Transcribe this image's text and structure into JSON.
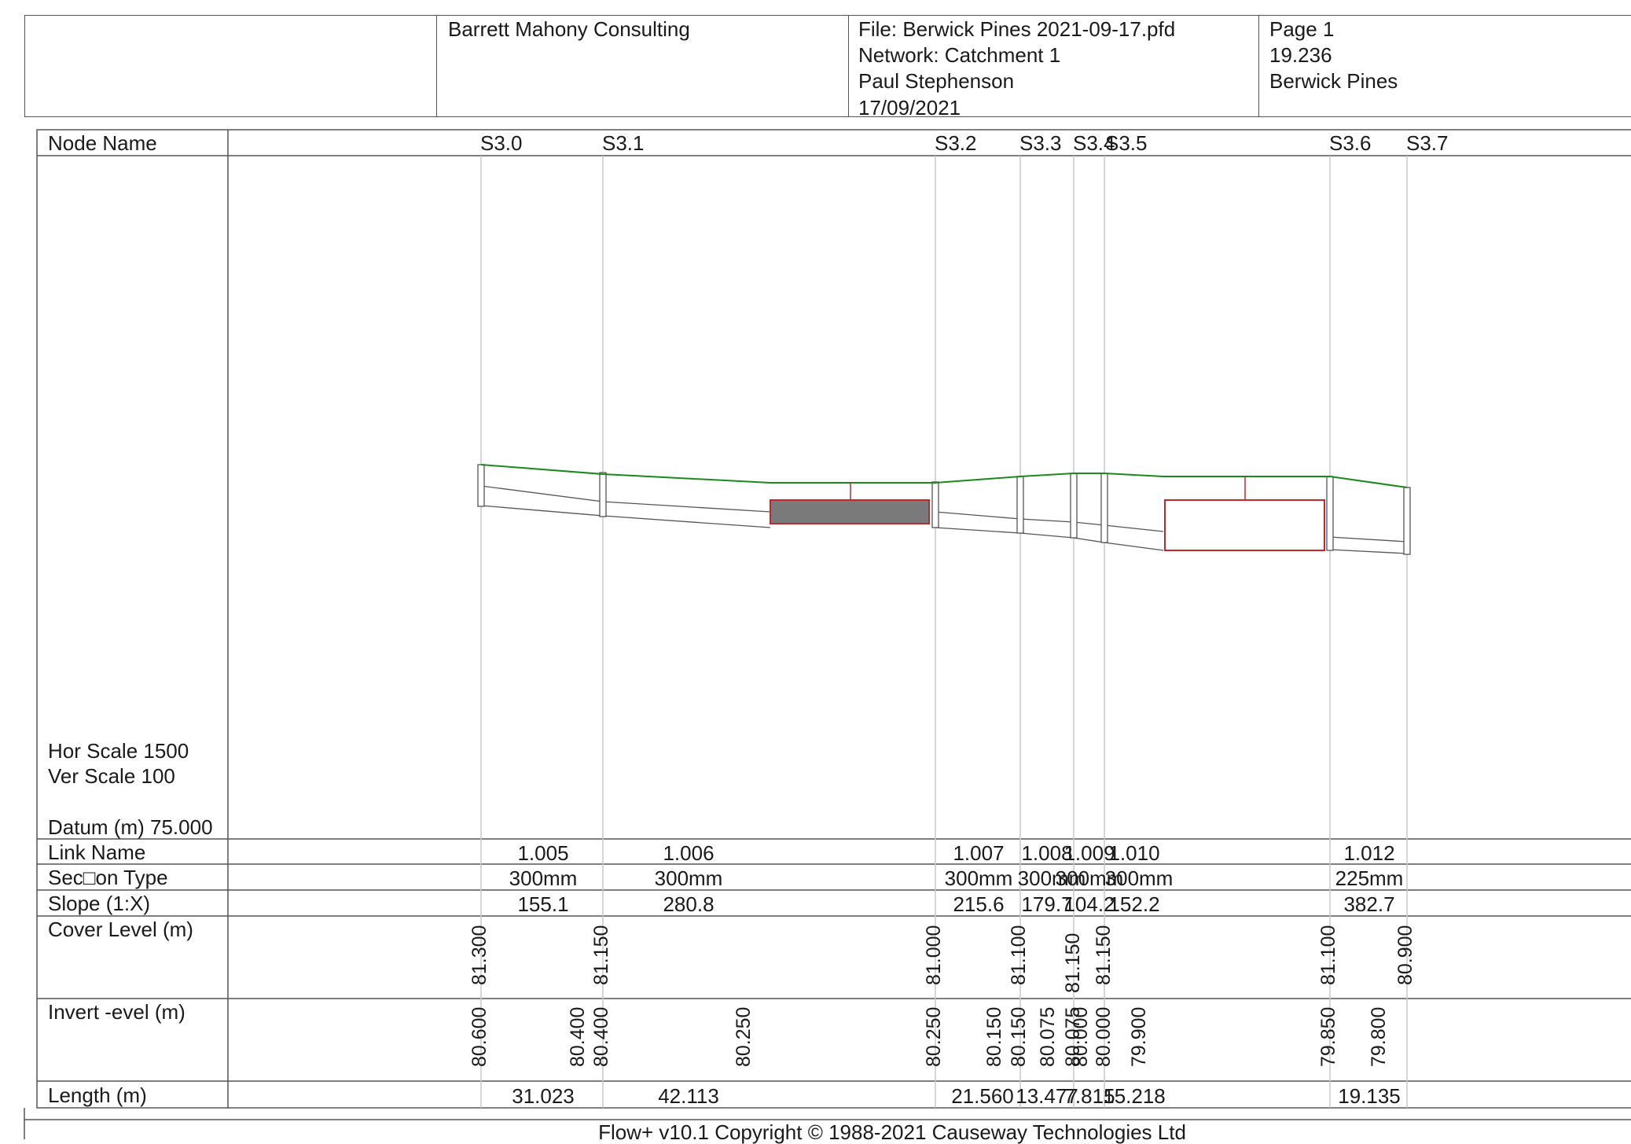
{
  "header": {
    "company": "Barrett Mahony Consulting",
    "file": "File: Berwick Pines 2021-09-17.pfd",
    "network": "Network: Catchment 1",
    "author": "Paul Stephenson",
    "date": "17/09/2021",
    "page": "Page 1",
    "job_number": "19.236",
    "project": "Berwick Pines"
  },
  "row_labels": {
    "node_name": "Node Name",
    "hor_scale": "Hor Scale 1500",
    "ver_scale": "Ver Scale 100",
    "datum": "Datum (m) 75.000",
    "link_name": "Link Name",
    "section_type": "Sec□on Type",
    "slope": "Slope (1:X)",
    "cover_level": "Cover Level (m)",
    "invert_level": "Invert ‐evel (m)",
    "length": "Length (m)"
  },
  "nodes": [
    "S3.0",
    "S3.1",
    "S3.2",
    "S3.3",
    "S3.4",
    "S3.5",
    "S3.6",
    "S3.7"
  ],
  "links": [
    {
      "name": "1.005",
      "section": "300mm",
      "slope": "155.1",
      "length": "31.023"
    },
    {
      "name": "1.006",
      "section": "300mm",
      "slope": "280.8",
      "length": "42.113"
    },
    {
      "name": "1.007",
      "section": "300mm",
      "slope": "215.6",
      "length": "21.560"
    },
    {
      "name": "1.008",
      "section": "300mm",
      "slope": "179.7",
      "length": "13.477"
    },
    {
      "name": "1.009",
      "section": "300mm",
      "slope": "104.2",
      "length": "7.815"
    },
    {
      "name": "1.010",
      "section": "300mm",
      "slope": "152.2",
      "length": "15.218"
    },
    {
      "name": "1.012",
      "section": "225mm",
      "slope": "382.7",
      "length": "19.135"
    }
  ],
  "cover_levels": [
    "81.300",
    "81.150",
    "81.000",
    "81.100",
    "81.150",
    "81.150",
    "81.100",
    "80.900"
  ],
  "invert_levels": [
    "80.600",
    "80.400",
    "80.400",
    "80.250",
    "80.250",
    "80.150",
    "80.150",
    "80.075",
    "80.075",
    "80.000",
    "80.000",
    "79.900",
    "79.850",
    "79.800"
  ],
  "footer": "Flow+ v10.1 Copyright © 1988-2021 Causeway Technologies Ltd",
  "colors": {
    "ground_line": "#1a8a1a",
    "storage": "#c0282d",
    "storage_fill": "#7a7a7a",
    "grid": "#c8c8c8",
    "border": "#555555"
  }
}
